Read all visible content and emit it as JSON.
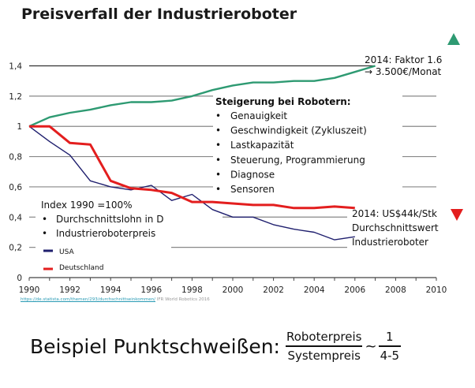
{
  "slide": {
    "title": "Preisverfall der Industrieroboter",
    "source_link": "https://de.statista.com/themen/293/durchschnittseinkommen/",
    "source_text": "IFR World Robotics 2016",
    "formula": {
      "lead": "Beispiel Punktschweißen:",
      "numerator": "Roboterpreis",
      "denominator": "Systempreis",
      "relation": "~",
      "ratio_numerator": "1",
      "ratio_denominator": "4-5"
    }
  },
  "chart_data": {
    "type": "line",
    "title": "Preisverfall der Industrieroboter",
    "xlabel": "",
    "ylabel": "",
    "xlim": [
      1990,
      2010
    ],
    "ylim": [
      0,
      1.4
    ],
    "x_ticks": [
      "1990",
      "1992",
      "1994",
      "1996",
      "1998",
      "2000",
      "2002",
      "2004",
      "2006",
      "2008",
      "2010"
    ],
    "y_ticks": [
      "0",
      "0,2",
      "0,4",
      "0,6",
      "0,8",
      "1",
      "1,2",
      "1,4"
    ],
    "grid": "horizontal",
    "legend_placement": "bottom-left",
    "series": [
      {
        "name": "Durchschnittslohn in D",
        "color": "#2e9a72",
        "x": [
          1990,
          1991,
          1992,
          1993,
          1994,
          1995,
          1996,
          1997,
          1998,
          1999,
          2000,
          2001,
          2002,
          2003,
          2004,
          2005,
          2006,
          2007
        ],
        "values": [
          1.0,
          1.06,
          1.09,
          1.11,
          1.14,
          1.16,
          1.16,
          1.17,
          1.2,
          1.24,
          1.27,
          1.29,
          1.29,
          1.3,
          1.3,
          1.32,
          1.36,
          1.4
        ]
      },
      {
        "name": "USA",
        "color": "#1f1f6e",
        "x": [
          1990,
          1991,
          1992,
          1993,
          1994,
          1995,
          1996,
          1997,
          1998,
          1999,
          2000,
          2001,
          2002,
          2003,
          2004,
          2005,
          2006
        ],
        "values": [
          1.0,
          0.9,
          0.81,
          0.64,
          0.6,
          0.58,
          0.61,
          0.51,
          0.55,
          0.45,
          0.4,
          0.4,
          0.35,
          0.32,
          0.3,
          0.25,
          0.27
        ]
      },
      {
        "name": "Deutschland",
        "color": "#e31e1e",
        "x": [
          1990,
          1991,
          1992,
          1993,
          1994,
          1995,
          1996,
          1997,
          1998,
          1999,
          2000,
          2001,
          2002,
          2003,
          2004,
          2005,
          2006
        ],
        "values": [
          1.0,
          1.0,
          0.89,
          0.88,
          0.64,
          0.59,
          0.58,
          0.56,
          0.5,
          0.5,
          0.49,
          0.48,
          0.48,
          0.46,
          0.46,
          0.47,
          0.46
        ]
      }
    ],
    "legend": [
      {
        "label": "USA",
        "color": "#1f1f6e"
      },
      {
        "label": "Deutschland",
        "color": "#e31e1e"
      }
    ],
    "annotations": {
      "index_title": "Index 1990 =100%",
      "index_items": [
        "Durchschnittslohn in D",
        "Industrieroboterpreis"
      ],
      "steigerung_title": "Steigerung bei Robotern:",
      "steigerung_items": [
        "Genauigkeit",
        "Geschwindigkeit (Zykluszeit)",
        "Lastkapazität",
        "Steuerung, Programmierung",
        "Diagnose",
        "Sensoren"
      ],
      "lohn_line1": "2014: Faktor 1.6",
      "lohn_line2": "→ 3.500€/Monat",
      "robot_line1": "2014: US$44k/Stk",
      "robot_line2": "Durchschnittswert",
      "robot_line3": "Industrieroboter",
      "up_marker_color": "#2e9a72",
      "down_marker_color": "#e31e1e",
      "bullet": "•"
    }
  }
}
